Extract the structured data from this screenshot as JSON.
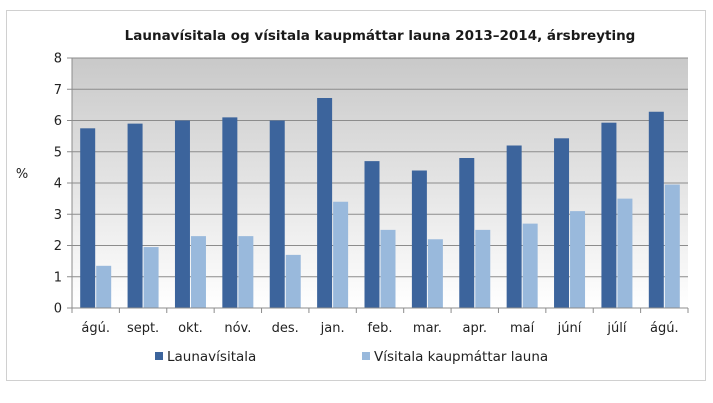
{
  "chart_data": {
    "type": "bar",
    "title": "Launavísitala og vísitala kaupmáttar launa 2013–2014, ársbreyting",
    "ylabel": "%",
    "xlabel": "",
    "ylim": [
      0,
      8
    ],
    "yticks": [
      0,
      1,
      2,
      3,
      4,
      5,
      6,
      7,
      8
    ],
    "grid": true,
    "legend_position": "bottom",
    "categories": [
      "ágú.",
      "sept.",
      "okt.",
      "nóv.",
      "des.",
      "jan.",
      "feb.",
      "mar.",
      "apr.",
      "maí",
      "júní",
      "júlí",
      "ágú."
    ],
    "series": [
      {
        "name": "Launavísitala",
        "color": "#3c649c",
        "values": [
          5.75,
          5.9,
          6.0,
          6.1,
          6.0,
          6.72,
          4.7,
          4.4,
          4.8,
          5.2,
          5.43,
          5.93,
          6.28
        ]
      },
      {
        "name": "Vísitala kaupmáttar launa",
        "color": "#99b9dc",
        "values": [
          1.35,
          1.95,
          2.3,
          2.3,
          1.7,
          3.4,
          2.5,
          2.2,
          2.5,
          2.7,
          3.1,
          3.5,
          3.95
        ]
      }
    ],
    "colors": {
      "plot_top": "#c9c9c9",
      "plot_bottom": "#ffffff",
      "grid": "#8c8c8c"
    }
  }
}
